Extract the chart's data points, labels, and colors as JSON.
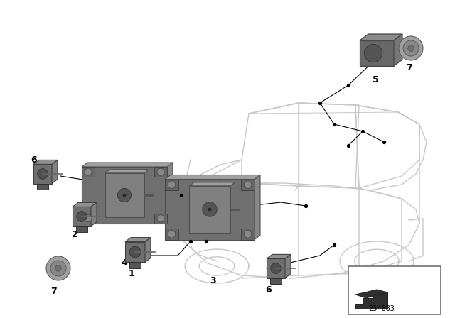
{
  "bg_color": "#ffffff",
  "diagram_id": "234683",
  "car_color": "#c8c8c8",
  "parts_color": "#7a7a7a",
  "line_color": "#000000",
  "label_fontsize": 9
}
